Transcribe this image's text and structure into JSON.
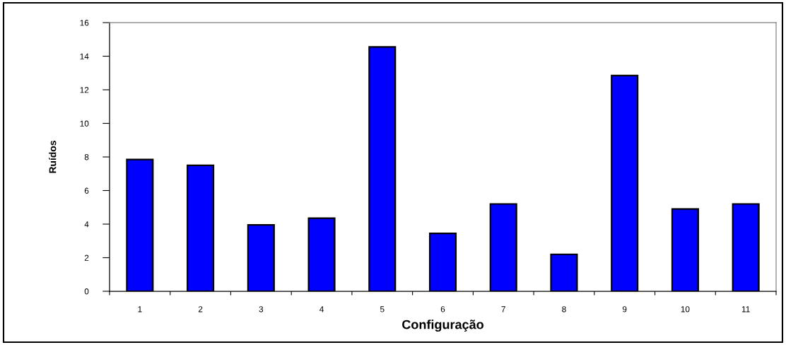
{
  "chart_data": {
    "type": "bar",
    "xlabel": "Configuração",
    "ylabel": "Ruídos",
    "categories": [
      "1",
      "2",
      "3",
      "4",
      "5",
      "6",
      "7",
      "8",
      "9",
      "10",
      "11"
    ],
    "values": [
      7.85,
      7.5,
      3.95,
      4.35,
      14.55,
      3.45,
      5.2,
      2.2,
      12.85,
      4.9,
      5.2
    ],
    "color": "#0000ff",
    "ylim": [
      0,
      16
    ],
    "yticks": [
      0,
      2,
      4,
      6,
      8,
      10,
      12,
      14,
      16
    ]
  }
}
